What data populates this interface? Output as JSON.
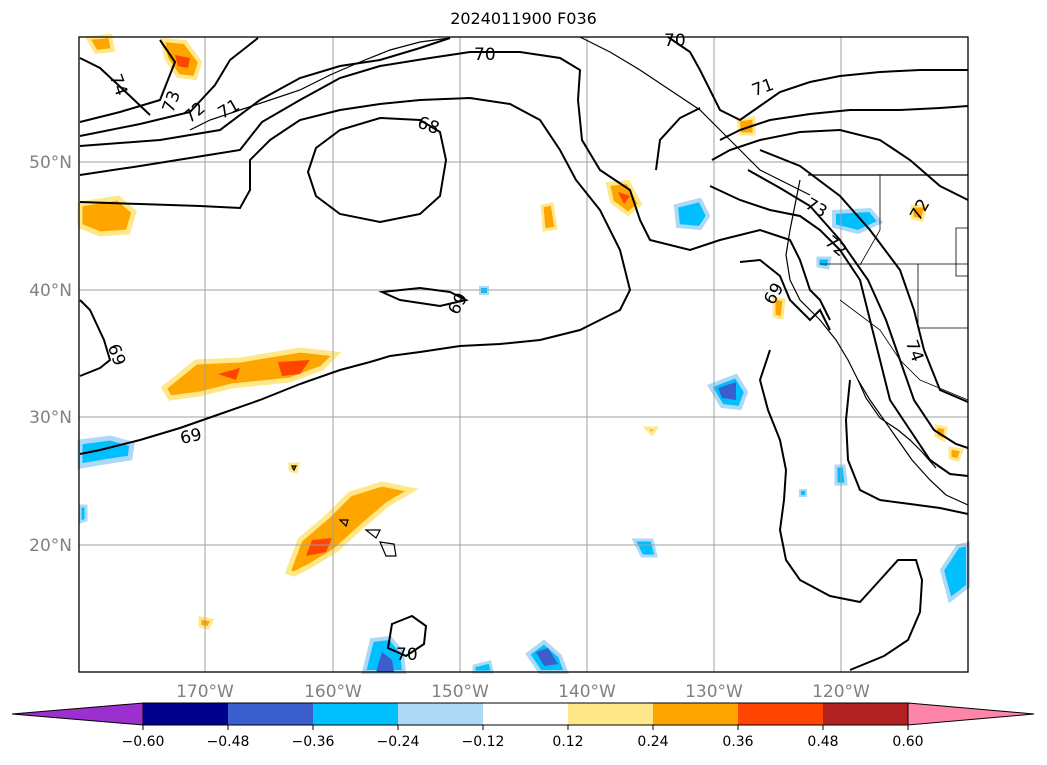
{
  "title": "2024011900 F036",
  "map": {
    "lat_labels": [
      {
        "value": 50,
        "text": "50°N"
      },
      {
        "value": 40,
        "text": "40°N"
      },
      {
        "value": 30,
        "text": "30°N"
      },
      {
        "value": 20,
        "text": "20°N"
      }
    ],
    "lon_labels": [
      {
        "value": -170,
        "text": "170°W"
      },
      {
        "value": -160,
        "text": "160°W"
      },
      {
        "value": -150,
        "text": "150°W"
      },
      {
        "value": -140,
        "text": "140°W"
      },
      {
        "value": -130,
        "text": "130°W"
      },
      {
        "value": -120,
        "text": "120°W"
      }
    ],
    "contour_labels": [
      "74",
      "73",
      "72",
      "71",
      "70",
      "68",
      "69",
      "69",
      "69",
      "71",
      "73",
      "72",
      "74",
      "69",
      "70",
      "70",
      "72"
    ],
    "colors": {
      "coastline": "#000000",
      "grid": "#a0a0a0",
      "contour": "#000000"
    }
  },
  "colorbar": {
    "levels": [
      -0.6,
      -0.48,
      -0.36,
      -0.24,
      -0.12,
      0.12,
      0.24,
      0.36,
      0.48,
      0.6
    ],
    "tick_labels": [
      "−0.60",
      "−0.48",
      "−0.36",
      "−0.24",
      "−0.12",
      "0.12",
      "0.24",
      "0.36",
      "0.48",
      "0.60"
    ],
    "colors": [
      "#9b30cf",
      "#00008b",
      "#3a5fcd",
      "#00bfff",
      "#add8f6",
      "#ffffff",
      "#ffe88a",
      "#ffa500",
      "#ff4500",
      "#b22222",
      "#ff85a8"
    ],
    "extend": "both"
  }
}
